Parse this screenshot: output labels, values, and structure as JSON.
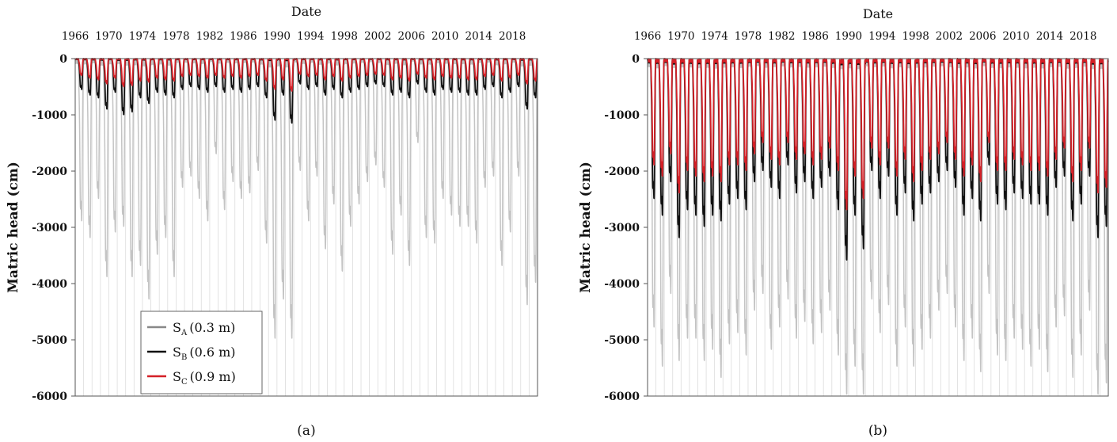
{
  "charts": [
    {
      "type": "line",
      "title": "Date",
      "ylabel": "Matric head (cm)",
      "panel_label": "(a)",
      "x_tick_labels": [
        "1966",
        "1970",
        "1974",
        "1978",
        "1982",
        "1986",
        "1990",
        "1994",
        "1998",
        "2002",
        "2006",
        "2010",
        "2014",
        "2018"
      ],
      "x_range": [
        1966,
        2021
      ],
      "ylim": [
        -6000,
        0
      ],
      "y_ticks": [
        0,
        -1000,
        -2000,
        -3000,
        -4000,
        -5000,
        -6000
      ],
      "y_tick_labels": [
        "0",
        "-1000",
        "-2000",
        "-3000",
        "-4000",
        "-5000",
        "-6000"
      ],
      "grid": "vertical",
      "legend": "bottom-left",
      "legend_items": [
        {
          "label": "S",
          "sub": "A",
          "suffix": "(0.3 m)",
          "color": "#888888"
        },
        {
          "label": "S",
          "sub": "B",
          "suffix": "(0.6 m)",
          "color": "#111111"
        },
        {
          "label": "S",
          "sub": "C",
          "suffix": "(0.9 m)",
          "color": "#d42027"
        }
      ],
      "series": [
        {
          "key": "SA",
          "color": "#c4c4c4",
          "annual_minima": [
            -2900,
            -3200,
            -2500,
            -3900,
            -3100,
            -3000,
            -3900,
            -3700,
            -4300,
            -3500,
            -3200,
            -3900,
            -2300,
            -2100,
            -2500,
            -2900,
            -1700,
            -2700,
            -2200,
            -2500,
            -2400,
            -2000,
            -3300,
            -5000,
            -4300,
            -5000,
            -2000,
            -2900,
            -2100,
            -3400,
            -2600,
            -3800,
            -3000,
            -2600,
            -2200,
            -1900,
            -2300,
            -3500,
            -2800,
            -3700,
            -1500,
            -3200,
            -3300,
            -2500,
            -2800,
            -3000,
            -3000,
            -3300,
            -2300,
            -2100,
            -3700,
            -3100,
            -2100,
            -4400,
            -4000
          ]
        },
        {
          "key": "SB",
          "color": "#111111",
          "annual_minima": [
            -550,
            -650,
            -700,
            -900,
            -600,
            -1000,
            -950,
            -700,
            -800,
            -600,
            -650,
            -700,
            -550,
            -500,
            -550,
            -600,
            -500,
            -600,
            -550,
            -600,
            -550,
            -500,
            -700,
            -1100,
            -650,
            -1150,
            -450,
            -550,
            -500,
            -650,
            -550,
            -700,
            -600,
            -550,
            -500,
            -450,
            -500,
            -650,
            -600,
            -700,
            -450,
            -600,
            -650,
            -550,
            -600,
            -600,
            -650,
            -650,
            -550,
            -500,
            -700,
            -600,
            -500,
            -900,
            -700
          ]
        },
        {
          "key": "SC",
          "color": "#d42027",
          "annual_minima": [
            -300,
            -350,
            -380,
            -450,
            -350,
            -500,
            -480,
            -400,
            -420,
            -350,
            -380,
            -400,
            -320,
            -300,
            -320,
            -350,
            -300,
            -350,
            -320,
            -350,
            -320,
            -300,
            -400,
            -550,
            -380,
            -580,
            -280,
            -320,
            -300,
            -380,
            -320,
            -400,
            -350,
            -320,
            -300,
            -280,
            -300,
            -380,
            -350,
            -400,
            -280,
            -350,
            -380,
            -320,
            -350,
            -350,
            -380,
            -380,
            -320,
            -300,
            -400,
            -350,
            -300,
            -450,
            -400
          ]
        }
      ]
    },
    {
      "type": "line",
      "title": "Date",
      "ylabel": "Matric head (cm)",
      "panel_label": "(b)",
      "x_tick_labels": [
        "1966",
        "1970",
        "1974",
        "1978",
        "1982",
        "1986",
        "1990",
        "1994",
        "1998",
        "2002",
        "2006",
        "2010",
        "2014",
        "2018"
      ],
      "x_range": [
        1966,
        2021
      ],
      "ylim": [
        -6000,
        0
      ],
      "y_ticks": [
        0,
        -1000,
        -2000,
        -3000,
        -4000,
        -5000,
        -6000
      ],
      "y_tick_labels": [
        "0",
        "-1000",
        "-2000",
        "-3000",
        "-4000",
        "-5000",
        "-6000"
      ],
      "grid": "vertical",
      "series": [
        {
          "key": "SA",
          "color": "#c4c4c4",
          "annual_minima": [
            -4800,
            -5500,
            -4200,
            -5400,
            -5000,
            -5000,
            -5400,
            -5200,
            -5700,
            -5100,
            -4900,
            -5300,
            -4500,
            -4200,
            -5200,
            -4800,
            -4300,
            -5000,
            -4700,
            -5100,
            -4900,
            -4500,
            -5300,
            -6000,
            -5500,
            -6000,
            -4300,
            -4900,
            -4400,
            -5500,
            -4800,
            -5500,
            -5200,
            -5000,
            -4500,
            -4200,
            -4800,
            -5400,
            -5000,
            -5600,
            -4200,
            -5300,
            -5400,
            -5000,
            -5200,
            -5500,
            -5200,
            -5600,
            -4800,
            -4600,
            -5700,
            -5300,
            -4500,
            -6000,
            -5800
          ]
        },
        {
          "key": "SB",
          "color": "#111111",
          "annual_minima": [
            -2500,
            -2800,
            -2200,
            -3200,
            -2700,
            -2800,
            -3000,
            -2800,
            -2900,
            -2600,
            -2500,
            -2700,
            -2200,
            -2000,
            -2300,
            -2500,
            -1900,
            -2400,
            -2200,
            -2500,
            -2300,
            -2100,
            -2700,
            -3600,
            -2800,
            -3400,
            -2000,
            -2500,
            -2100,
            -2800,
            -2400,
            -2900,
            -2600,
            -2400,
            -2200,
            -2000,
            -2300,
            -2800,
            -2500,
            -2900,
            -1900,
            -2600,
            -2700,
            -2400,
            -2500,
            -2600,
            -2600,
            -2800,
            -2300,
            -2100,
            -2900,
            -2600,
            -2100,
            -3200,
            -3000
          ]
        },
        {
          "key": "SC",
          "color": "#d42027",
          "annual_minima": [
            -1900,
            -2100,
            -1700,
            -2400,
            -2000,
            -2100,
            -2200,
            -2100,
            -2200,
            -1900,
            -1900,
            -2000,
            -1700,
            -1500,
            -1800,
            -1900,
            -1500,
            -1800,
            -1700,
            -1900,
            -1800,
            -1600,
            -2000,
            -2700,
            -2100,
            -2500,
            -1600,
            -1900,
            -1600,
            -2100,
            -1800,
            -2200,
            -2000,
            -1800,
            -1700,
            -1500,
            -1800,
            -2100,
            -1900,
            -2200,
            -1500,
            -2000,
            -2000,
            -1800,
            -1900,
            -2000,
            -2000,
            -2100,
            -1800,
            -1600,
            -2200,
            -2000,
            -1600,
            -2400,
            -2300
          ]
        }
      ]
    }
  ]
}
